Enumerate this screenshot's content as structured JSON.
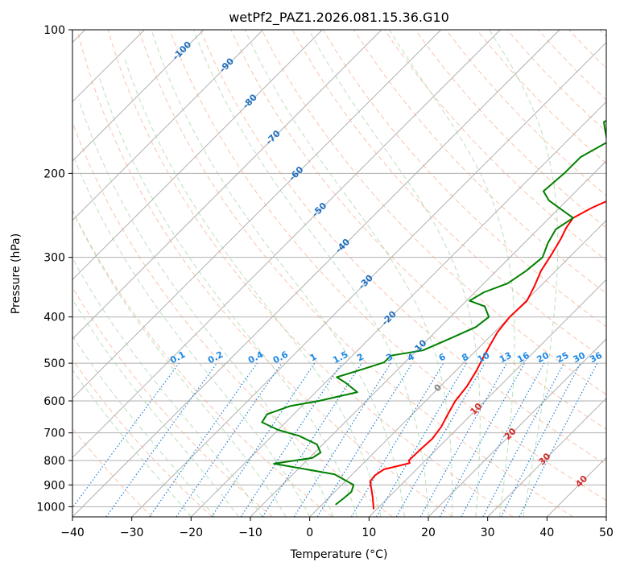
{
  "chart_data": {
    "type": "line",
    "title": "wetPf2_PAZ1.2026.081.15.36.G10",
    "xlabel": "Temperature (°C)",
    "ylabel": "Pressure (hPa)",
    "xlim": [
      -40,
      50
    ],
    "ylim": [
      1050,
      100
    ],
    "y_scale": "log",
    "grid": true,
    "x_ticks": [
      -40,
      -30,
      -20,
      -10,
      0,
      10,
      20,
      30,
      40,
      50
    ],
    "x_tick_labels": [
      "−40",
      "−30",
      "−20",
      "−10",
      "0",
      "10",
      "20",
      "30",
      "40",
      "50"
    ],
    "y_ticks": [
      1000,
      900,
      800,
      700,
      600,
      500,
      400,
      300,
      200,
      100
    ],
    "y_tick_labels": [
      "1000",
      "900",
      "800",
      "700",
      "600",
      "500",
      "400",
      "300",
      "200",
      "100"
    ],
    "colors": {
      "temperature": "#ff0000",
      "dewpoint": "#008000",
      "isotherm_grid": "#b0b0b0",
      "dry_adiabat": "#f4a582",
      "moist_adiabat": "#a6d6a6",
      "mixing_ratio": "#1f7fd6",
      "isotherm_label": "#1f6fbf",
      "cold_label": "#1e88e5",
      "warm_label": "#d62728",
      "zero_label": "#808080"
    },
    "series": [
      {
        "name": "",
        "role": "temperature",
        "color": "#ff0000",
        "points": [
          [
            9.5,
            1012
          ],
          [
            7.5,
            960
          ],
          [
            5.8,
            920
          ],
          [
            4.2,
            885
          ],
          [
            4.0,
            860
          ],
          [
            4.5,
            835
          ],
          [
            7.8,
            810
          ],
          [
            7.2,
            800
          ],
          [
            7.3,
            760
          ],
          [
            7.5,
            720
          ],
          [
            7.0,
            680
          ],
          [
            6.0,
            640
          ],
          [
            5.0,
            600
          ],
          [
            4.5,
            560
          ],
          [
            3.5,
            520
          ],
          [
            2.5,
            490
          ],
          [
            1.5,
            460
          ],
          [
            0.5,
            430
          ],
          [
            0.0,
            400
          ],
          [
            0.2,
            370
          ],
          [
            -1.0,
            345
          ],
          [
            -2.5,
            320
          ],
          [
            -3.5,
            295
          ],
          [
            -4.5,
            275
          ],
          [
            -5.5,
            260
          ],
          [
            -6.0,
            248
          ],
          [
            -4.5,
            236
          ],
          [
            -1.5,
            220
          ],
          [
            1.5,
            200
          ],
          [
            4.5,
            180
          ],
          [
            8.0,
            160
          ],
          [
            12.0,
            150
          ],
          [
            13.5,
            140
          ],
          [
            14.5,
            132
          ],
          [
            16.5,
            122
          ],
          [
            19.0,
            112
          ],
          [
            21.0,
            104
          ],
          [
            23.0,
            100
          ]
        ]
      },
      {
        "name": "",
        "role": "dewpoint",
        "color": "#008000",
        "points": [
          [
            2.3,
            990
          ],
          [
            2.6,
            960
          ],
          [
            2.8,
            930
          ],
          [
            2.0,
            900
          ],
          [
            -3.0,
            855
          ],
          [
            -15.0,
            812
          ],
          [
            -9.5,
            790
          ],
          [
            -9.0,
            770
          ],
          [
            -11.0,
            740
          ],
          [
            -15.5,
            710
          ],
          [
            -20.0,
            690
          ],
          [
            -24.0,
            665
          ],
          [
            -24.5,
            640
          ],
          [
            -22.0,
            615
          ],
          [
            -18.0,
            600
          ],
          [
            -13.0,
            575
          ],
          [
            -16.5,
            550
          ],
          [
            -19.0,
            535
          ],
          [
            -16.0,
            515
          ],
          [
            -13.5,
            498
          ],
          [
            -13.5,
            482
          ],
          [
            -9.0,
            470
          ],
          [
            -6.5,
            445
          ],
          [
            -4.0,
            420
          ],
          [
            -3.5,
            400
          ],
          [
            -6.0,
            380
          ],
          [
            -9.5,
            370
          ],
          [
            -8.5,
            355
          ],
          [
            -6.0,
            340
          ],
          [
            -5.0,
            320
          ],
          [
            -4.5,
            300
          ],
          [
            -6.0,
            280
          ],
          [
            -7.0,
            262
          ],
          [
            -6.0,
            248
          ],
          [
            -13.0,
            228
          ],
          [
            -15.5,
            218
          ],
          [
            -15.0,
            200
          ],
          [
            -15.0,
            185
          ],
          [
            -13.0,
            172
          ],
          [
            -15.5,
            162
          ],
          [
            -17.0,
            156
          ],
          [
            -15.5,
            150
          ],
          [
            -11.5,
            140
          ],
          [
            -8.0,
            125
          ],
          [
            -5.0,
            115
          ],
          [
            -2.0,
            105
          ],
          [
            -0.5,
            100
          ]
        ]
      }
    ],
    "annotations": {
      "isotherm_labels": [
        {
          "text": "-100",
          "t": -100
        },
        {
          "text": "-90",
          "t": -90
        },
        {
          "text": "-80",
          "t": -80
        },
        {
          "text": "-70",
          "t": -70
        },
        {
          "text": "-60",
          "t": -60
        },
        {
          "text": "-50",
          "t": -50
        },
        {
          "text": "-40",
          "t": -40
        },
        {
          "text": "-30",
          "t": -30
        },
        {
          "text": "-20",
          "t": -20
        },
        {
          "text": "-10",
          "t": -10
        }
      ],
      "mixing_ratio_labels": [
        {
          "text": "0.1",
          "value": 0.1
        },
        {
          "text": "0.2",
          "value": 0.2
        },
        {
          "text": "0.4",
          "value": 0.4
        },
        {
          "text": "0.6",
          "value": 0.6
        },
        {
          "text": "1",
          "value": 1
        },
        {
          "text": "1.5",
          "value": 1.5
        },
        {
          "text": "2",
          "value": 2
        },
        {
          "text": "3",
          "value": 3
        },
        {
          "text": "4",
          "value": 4
        },
        {
          "text": "6",
          "value": 6
        },
        {
          "text": "8",
          "value": 8
        },
        {
          "text": "10",
          "value": 10
        },
        {
          "text": "13",
          "value": 13
        },
        {
          "text": "16",
          "value": 16
        },
        {
          "text": "20",
          "value": 20
        },
        {
          "text": "25",
          "value": 25
        },
        {
          "text": "30",
          "value": 30
        },
        {
          "text": "36",
          "value": 36
        }
      ],
      "warm_isotherm_labels": [
        {
          "text": "0",
          "t": 0,
          "color": "#808080"
        },
        {
          "text": "10",
          "t": 10,
          "color": "#d62728"
        },
        {
          "text": "20",
          "t": 20,
          "color": "#d62728"
        },
        {
          "text": "30",
          "t": 30,
          "color": "#d62728"
        },
        {
          "text": "40",
          "t": 40,
          "color": "#d62728"
        }
      ]
    }
  }
}
